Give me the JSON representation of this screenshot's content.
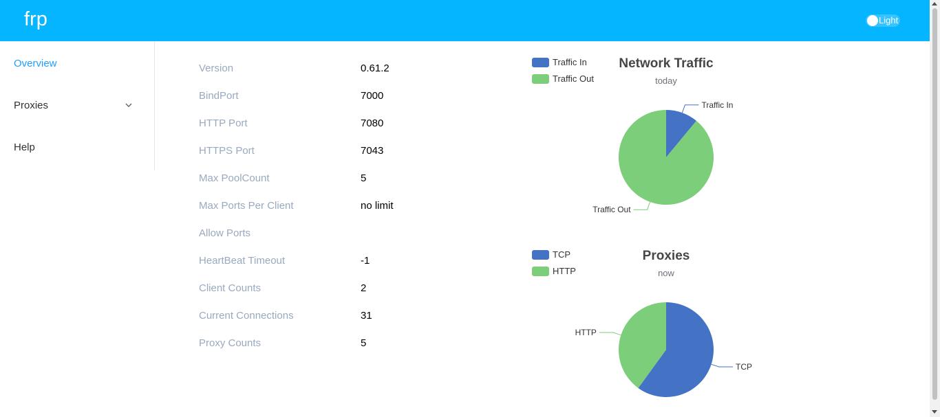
{
  "app": {
    "title": "frp",
    "theme_label": "Light"
  },
  "sidebar": {
    "items": [
      {
        "label": "Overview"
      },
      {
        "label": "Proxies"
      },
      {
        "label": "Help"
      }
    ]
  },
  "server_info": [
    {
      "label": "Version",
      "value": "0.61.2"
    },
    {
      "label": "BindPort",
      "value": "7000"
    },
    {
      "label": "HTTP Port",
      "value": "7080"
    },
    {
      "label": "HTTPS Port",
      "value": "7043"
    },
    {
      "label": "Max PoolCount",
      "value": "5"
    },
    {
      "label": "Max Ports Per Client",
      "value": "no limit"
    },
    {
      "label": "Allow Ports",
      "value": ""
    },
    {
      "label": "HeartBeat Timeout",
      "value": "-1"
    },
    {
      "label": "Client Counts",
      "value": "2"
    },
    {
      "label": "Current Connections",
      "value": "31"
    },
    {
      "label": "Proxy Counts",
      "value": "5"
    }
  ],
  "colors": {
    "accent": "#05b5ff",
    "blue": "#4472c4",
    "green": "#7dce7a"
  },
  "chart_data": [
    {
      "type": "pie",
      "title": "Network Traffic",
      "subtitle": "today",
      "categories": [
        "Traffic In",
        "Traffic Out"
      ],
      "values": [
        11,
        89
      ],
      "legend": [
        "Traffic In",
        "Traffic Out"
      ]
    },
    {
      "type": "pie",
      "title": "Proxies",
      "subtitle": "now",
      "categories": [
        "TCP",
        "HTTP"
      ],
      "values": [
        3,
        2
      ],
      "legend": [
        "TCP",
        "HTTP"
      ]
    }
  ]
}
